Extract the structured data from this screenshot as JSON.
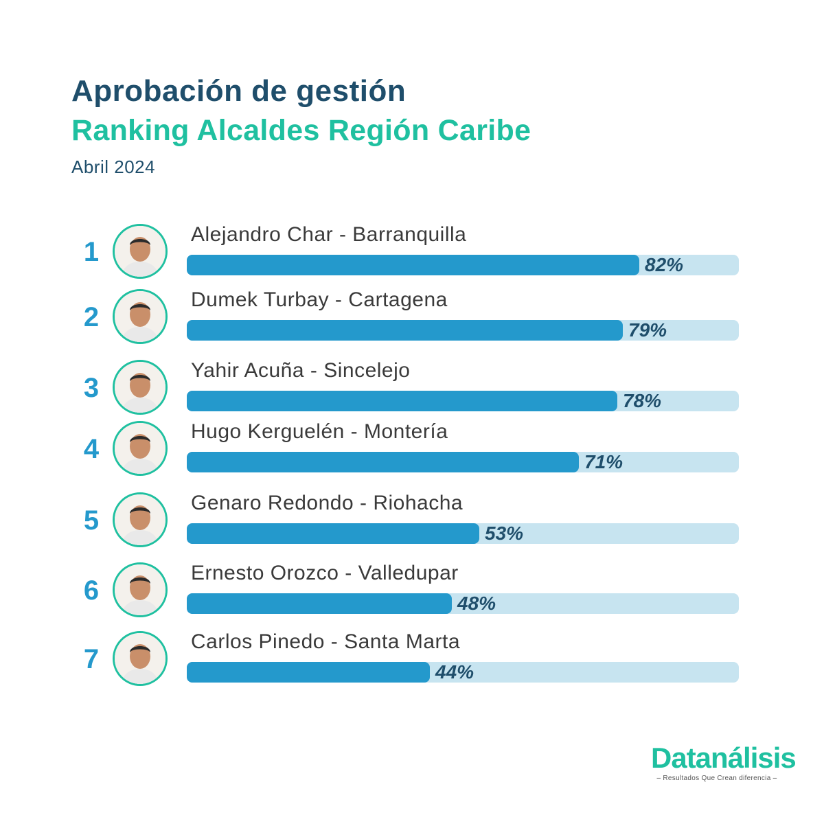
{
  "header": {
    "title": "Aprobación de gestión",
    "subtitle_part1": "Ranking ",
    "subtitle_bold": "Alcaldes",
    "subtitle_part2": " Región Caribe",
    "date": "Abril 2024"
  },
  "colors": {
    "bar_fill": "#2499cc",
    "bar_track": "#c7e4f0",
    "accent_green": "#1fc0a0",
    "title_navy": "#1f4e6b"
  },
  "chart_data": {
    "type": "bar",
    "orientation": "horizontal",
    "xlim": [
      0,
      100
    ],
    "categories": [
      "Alejandro Char - Barranquilla",
      "Dumek Turbay - Cartagena",
      "Yahir Acuña - Sincelejo",
      "Hugo Kerguelén - Montería",
      "Genaro Redondo - Riohacha",
      "Ernesto Orozco - Valledupar",
      "Carlos Pinedo - Santa Marta"
    ],
    "values": [
      82,
      79,
      78,
      71,
      53,
      48,
      44
    ],
    "value_labels": [
      "82%",
      "79%",
      "78%",
      "71%",
      "53%",
      "48%",
      "44%"
    ],
    "ranks": [
      "1",
      "2",
      "3",
      "4",
      "5",
      "6",
      "7"
    ],
    "avatar_icon": "person-portrait-icon"
  },
  "logo": {
    "name": "Datanálisis",
    "tagline": "– Resultados Que Crean diferencia –"
  }
}
